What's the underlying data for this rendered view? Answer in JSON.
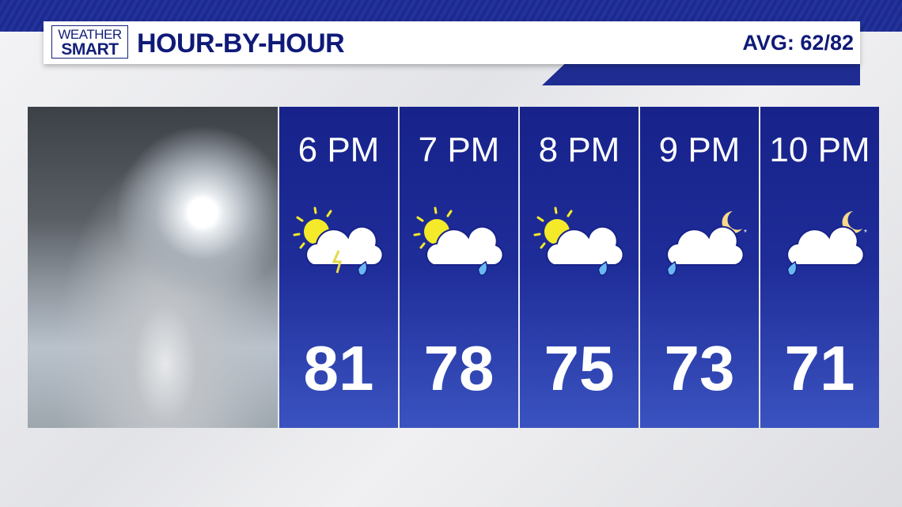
{
  "header": {
    "logo_line1": "WEATHER",
    "logo_line2": "SMART",
    "title": "HOUR-BY-HOUR",
    "avg": "AVG: 62/82"
  },
  "colors": {
    "brand": "#0f1a78",
    "panel": "#1f2d99",
    "sun": "#f5ea2a",
    "rain": "#6ab8f2"
  },
  "hours": [
    {
      "time": "6 PM",
      "icon": "sun-cloud-thunder-rain-icon",
      "temp": "81"
    },
    {
      "time": "7 PM",
      "icon": "sun-cloud-rain-icon",
      "temp": "78"
    },
    {
      "time": "8 PM",
      "icon": "sun-cloud-rain-icon",
      "temp": "75"
    },
    {
      "time": "9 PM",
      "icon": "moon-cloud-rain-icon",
      "temp": "73"
    },
    {
      "time": "10 PM",
      "icon": "moon-cloud-rain-icon",
      "temp": "71"
    }
  ]
}
